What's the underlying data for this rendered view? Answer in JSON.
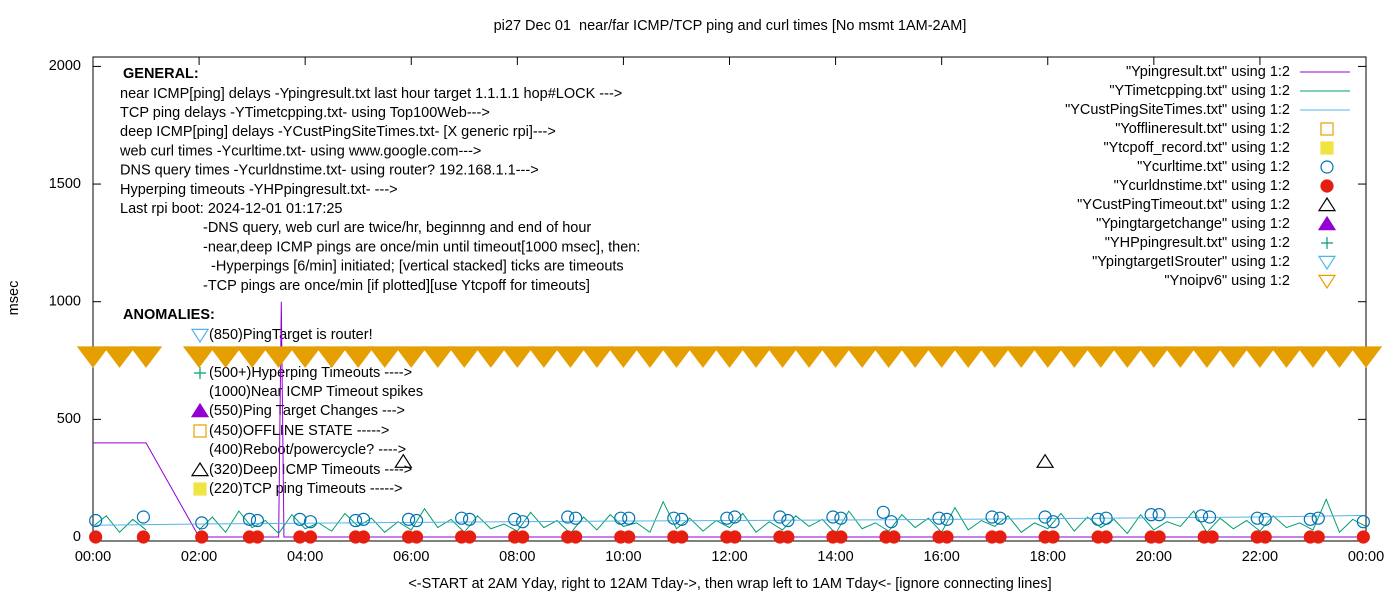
{
  "chart_data": {
    "type": "line",
    "title": "pi27 Dec 01  near/far ICMP/TCP ping and curl times [No msmt 1AM-2AM]",
    "x_label": "<-START at 2AM Yday, right to 12AM Tday->, then wrap left to 1AM Tday<- [ignore connecting lines]",
    "y_label": "msec",
    "xlim": [
      0,
      24
    ],
    "xticks": [
      {
        "value": 0,
        "label": "00:00"
      },
      {
        "value": 2,
        "label": "02:00"
      },
      {
        "value": 4,
        "label": "04:00"
      },
      {
        "value": 6,
        "label": "06:00"
      },
      {
        "value": 8,
        "label": "08:00"
      },
      {
        "value": 10,
        "label": "10:00"
      },
      {
        "value": 12,
        "label": "12:00"
      },
      {
        "value": 14,
        "label": "14:00"
      },
      {
        "value": 16,
        "label": "16:00"
      },
      {
        "value": 18,
        "label": "18:00"
      },
      {
        "value": 20,
        "label": "20:00"
      },
      {
        "value": 22,
        "label": "22:00"
      },
      {
        "value": 24,
        "label": "00:00"
      }
    ],
    "ylim": [
      0,
      2040
    ],
    "yticks": [
      0,
      500,
      1000,
      1500,
      2000
    ],
    "grid": false,
    "legend_position": "top-right",
    "general_heading": "GENERAL:",
    "general_lines": [
      "near ICMP[ping] delays -Ypingresult.txt last hour target 1.1.1.1 hop#LOCK --->",
      "TCP ping delays -YTimetcpping.txt- using Top100Web--->",
      "deep ICMP[ping] delays -YCustPingSiteTimes.txt- [X generic rpi]--->",
      "web curl times -Ycurltime.txt- using www.google.com--->",
      "DNS query times -Ycurldnstime.txt- using router? 192.168.1.1--->",
      "Hyperping timeouts -YHPpingresult.txt- --->",
      "Last rpi boot: 2024-12-01 01:17:25",
      "-DNS query, web curl are twice/hr, beginnng and end of hour",
      "-near,deep ICMP pings are once/min until timeout[1000 msec], then:",
      "  -Hyperpings [6/min] initiated; [vertical stacked] ticks are timeouts",
      "-TCP pings are once/min [if plotted][use Ytcpoff for timeouts]"
    ],
    "anomalies_heading": "ANOMALIES:",
    "anomalies": [
      {
        "text": "(850)PingTarget is router!",
        "marker": "triangle-down-open",
        "color": "#56b4e9"
      },
      {
        "text": "(500+)Hyperping Timeouts ---->",
        "marker": "plus",
        "color": "#009e73"
      },
      {
        "text": "(1000)Near ICMP Timeout spikes"
      },
      {
        "text": "(550)Ping Target Changes --->",
        "marker": "triangle-filled",
        "color": "#9400d3"
      },
      {
        "text": "(450)OFFLINE STATE ----->",
        "marker": "square-open",
        "color": "#e69f00"
      },
      {
        "text": "(400)Reboot/powercycle? ---->"
      },
      {
        "text": "(320)Deep ICMP Timeouts ---->",
        "marker": "triangle-open",
        "color": "#000000"
      },
      {
        "text": "(220)TCP ping Timeouts ----->",
        "marker": "square-filled",
        "color": "#f0e442"
      }
    ],
    "series": [
      {
        "name": "\"Ypingresult.txt\" using 1:2",
        "color": "#9400d3",
        "style": "line",
        "x": [
          0,
          1.0,
          2.0,
          3.5,
          3.55,
          3.6,
          24
        ],
        "values": [
          400,
          400,
          0,
          0,
          1000,
          0,
          0
        ]
      },
      {
        "name": "\"YTimetcpping.txt\" using 1:2",
        "color": "#009e73",
        "style": "line",
        "x": [
          0,
          0.25,
          0.5,
          0.75,
          1.0,
          1.5,
          2,
          2.25,
          2.5,
          2.75,
          3,
          3.25,
          3.5,
          3.75,
          4,
          4.25,
          4.5,
          4.75,
          5,
          5.25,
          5.5,
          5.75,
          6,
          6.25,
          6.5,
          6.75,
          7,
          7.25,
          7.5,
          7.75,
          8,
          8.25,
          8.5,
          8.75,
          9,
          9.25,
          9.5,
          9.75,
          10,
          10.25,
          10.5,
          10.75,
          11,
          11.25,
          11.5,
          11.75,
          12,
          12.25,
          12.5,
          12.75,
          13,
          13.25,
          13.5,
          13.75,
          14,
          14.25,
          14.5,
          14.75,
          15,
          15.25,
          15.5,
          15.75,
          16,
          16.25,
          16.5,
          16.75,
          17,
          17.25,
          17.5,
          17.75,
          18,
          18.25,
          18.5,
          18.75,
          19,
          19.25,
          19.5,
          19.75,
          20,
          20.25,
          20.5,
          20.75,
          21,
          21.25,
          21.5,
          21.75,
          22,
          22.25,
          22.5,
          22.75,
          23,
          23.25,
          23.5,
          23.75,
          24
        ],
        "values": [
          45,
          90,
          20,
          75,
          30,
          null,
          30,
          85,
          20,
          110,
          40,
          70,
          15,
          95,
          35,
          60,
          25,
          100,
          45,
          80,
          20,
          65,
          30,
          120,
          40,
          75,
          20,
          90,
          35,
          55,
          25,
          105,
          40,
          70,
          15,
          85,
          30,
          95,
          45,
          60,
          20,
          150,
          35,
          80,
          25,
          70,
          40,
          100,
          20,
          65,
          30,
          90,
          45,
          75,
          15,
          110,
          35,
          60,
          25,
          95,
          40,
          80,
          20,
          125,
          30,
          70,
          45,
          90,
          20,
          60,
          35,
          100,
          25,
          85,
          40,
          75,
          15,
          95,
          30,
          65,
          45,
          110,
          20,
          80,
          35,
          70,
          25,
          90,
          40,
          60,
          30,
          160,
          20,
          75,
          45
        ]
      },
      {
        "name": "\"YCustPingSiteTimes.txt\" using 1:2",
        "color": "#56b4e9",
        "style": "line",
        "x": [
          0,
          2,
          6,
          10,
          14,
          18,
          22,
          24
        ],
        "values": [
          50,
          55,
          62,
          68,
          72,
          78,
          85,
          92
        ]
      },
      {
        "name": "\"Yofflineresult.txt\" using 1:2",
        "color": "#e69f00",
        "style": "square-open",
        "x": [],
        "values": []
      },
      {
        "name": "\"Ytcpoff_record.txt\" using 1:2",
        "color": "#f0e442",
        "style": "square-filled",
        "x": [],
        "values": []
      },
      {
        "name": "\"Ycurltime.txt\" using 1:2",
        "color": "#0072b2",
        "style": "circle-open",
        "x": [
          0.05,
          0.95,
          2.05,
          2.95,
          3.1,
          3.9,
          4.1,
          4.95,
          5.1,
          5.95,
          6.1,
          6.95,
          7.1,
          7.95,
          8.1,
          8.95,
          9.1,
          9.95,
          10.1,
          10.95,
          11.1,
          11.95,
          12.1,
          12.95,
          13.1,
          13.95,
          14.1,
          14.9,
          15.05,
          15.95,
          16.1,
          16.95,
          17.1,
          17.95,
          18.1,
          18.95,
          19.1,
          19.95,
          20.1,
          20.9,
          21.05,
          21.95,
          22.1,
          22.95,
          23.1,
          23.95
        ],
        "values": [
          70,
          85,
          60,
          75,
          70,
          75,
          65,
          70,
          75,
          75,
          70,
          80,
          75,
          75,
          65,
          85,
          80,
          80,
          80,
          80,
          75,
          80,
          85,
          85,
          70,
          85,
          80,
          105,
          65,
          80,
          75,
          85,
          80,
          85,
          65,
          75,
          80,
          95,
          95,
          90,
          85,
          80,
          75,
          75,
          80,
          65
        ]
      },
      {
        "name": "\"Ycurldnstime.txt\" using 1:2",
        "color": "#e51e10",
        "style": "circle-filled",
        "x": [
          0.05,
          0.95,
          2.05,
          2.95,
          3.1,
          3.9,
          4.1,
          4.95,
          5.1,
          5.95,
          6.1,
          6.95,
          7.1,
          7.95,
          8.1,
          8.95,
          9.1,
          9.95,
          10.1,
          10.95,
          11.1,
          11.95,
          12.1,
          12.95,
          13.1,
          13.95,
          14.1,
          14.95,
          15.1,
          15.95,
          16.1,
          16.95,
          17.1,
          17.95,
          18.1,
          18.95,
          19.1,
          19.95,
          20.1,
          20.95,
          21.1,
          21.95,
          22.1,
          22.95,
          23.1,
          23.95
        ],
        "values": [
          0,
          0,
          0,
          0,
          0,
          0,
          0,
          0,
          0,
          0,
          0,
          0,
          0,
          0,
          0,
          0,
          0,
          0,
          0,
          0,
          0,
          0,
          0,
          0,
          0,
          0,
          0,
          0,
          0,
          0,
          0,
          0,
          0,
          0,
          0,
          0,
          0,
          0,
          0,
          0,
          0,
          0,
          0,
          0,
          0,
          0
        ]
      },
      {
        "name": "\"YCustPingTimeout.txt\" using 1:2",
        "color": "#000000",
        "style": "triangle-open",
        "x": [
          5.85,
          17.95
        ],
        "values": [
          320,
          320
        ]
      },
      {
        "name": "\"Ypingtargetchange\" using 1:2",
        "color": "#9400d3",
        "style": "triangle-filled",
        "x": [],
        "values": []
      },
      {
        "name": "\"YHPpingresult.txt\" using 1:2",
        "color": "#009e73",
        "style": "plus",
        "x": [],
        "values": []
      },
      {
        "name": "\"YpingtargetISrouter\" using 1:2",
        "color": "#56b4e9",
        "style": "triangle-down-open",
        "x": [],
        "values": []
      },
      {
        "name": "\"Ynoipv6\" using 1:2",
        "color": "#e69f00",
        "style": "triangle-down-open",
        "x": [
          0,
          0.5,
          1.0,
          2,
          2.5,
          3,
          3.5,
          4,
          4.5,
          5,
          5.5,
          6,
          6.5,
          7,
          7.5,
          8,
          8.5,
          9,
          9.5,
          10,
          10.5,
          11,
          11.5,
          12,
          12.5,
          13,
          13.5,
          14,
          14.5,
          15,
          15.5,
          16,
          16.5,
          17,
          17.5,
          18,
          18.5,
          19,
          19.5,
          20,
          20.5,
          21,
          21.5,
          22,
          22.5,
          23,
          23.5,
          24
        ],
        "values": [
          770,
          770,
          770,
          770,
          770,
          770,
          770,
          770,
          770,
          770,
          770,
          770,
          770,
          770,
          770,
          770,
          770,
          770,
          770,
          770,
          770,
          770,
          770,
          770,
          770,
          770,
          770,
          770,
          770,
          770,
          770,
          770,
          770,
          770,
          770,
          770,
          770,
          770,
          770,
          770,
          770,
          770,
          770,
          770,
          770,
          770,
          770,
          770
        ]
      }
    ]
  }
}
